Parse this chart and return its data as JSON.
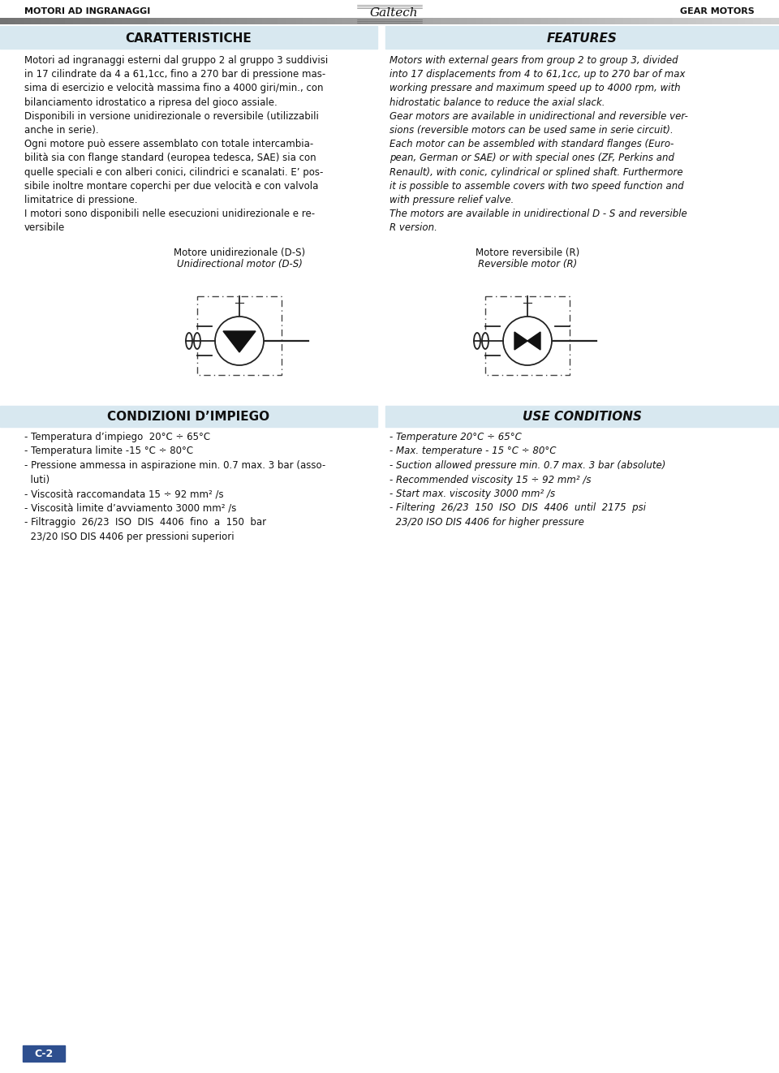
{
  "page_width": 9.6,
  "page_height": 13.22,
  "bg_color": "#ffffff",
  "header_text_left": "MOTORI AD INGRANAGGI",
  "header_text_right": "GEAR MOTORS",
  "section1_bg": "#d8e8f0",
  "section1_title_left": "CARATTERISTICHE",
  "section1_title_right": "FEATURES",
  "section1_body_left": "Motori ad ingranaggi esterni dal gruppo 2 al gruppo 3 suddivisi\nin 17 cilindrate da 4 a 61,1cc, fino a 270 bar di pressione mas-\nsima di esercizio e velocità massima fino a 4000 giri/min., con\nbilanciamento idrostatico a ripresa del gioco assiale.\nDisponibili in versione unidirezionale o reversibile (utilizzabili\nanche in serie).\nOgni motore può essere assemblato con totale intercambia-\nbilità sia con flange standard (europea tedesca, SAE) sia con\nquelle speciali e con alberi conici, cilindrici e scanalati. E’ pos-\nsibile inoltre montare coperchi per due velocità e con valvola\nlimitatrice di pressione.",
  "section1_body_right": "Motors with external gears from group 2 to group 3, divided\ninto 17 displacements from 4 to 61,1cc, up to 270 bar of max\nworking pressare and maximum speed up to 4000 rpm, with\nhidrostatic balance to reduce the axial slack.\nGear motors are available in unidirectional and reversible ver-\nsions (reversible motors can be used same in serie circuit).\nEach motor can be assembled with standard flanges (Euro-\npean, German or SAE) or with special ones (ZF, Perkins and\nRenault), with conic, cylindrical or splined shaft. Furthermore\nit is possible to assemble covers with two speed function and\nwith pressure relief valve.",
  "section1_body_left2": "I motori sono disponibili nelle esecuzioni unidirezionale e re-\nversibile",
  "section1_body_right2": "The motors are available in unidirectional D - S and reversible\nR version.",
  "motor_label_left": "Motore unidirezionale (D-S)",
  "motor_label_left_italic": "Unidirectional motor (D-S)",
  "motor_label_right": "Motore reversibile (R)",
  "motor_label_right_italic": "Reversible motor (R)",
  "section2_bg": "#d8e8f0",
  "section2_title_left": "CONDIZIONI D’IMPIEGO",
  "section2_title_right": "USE CONDITIONS",
  "section2_body_left": "- Temperatura d’impiego  20°C ÷ 65°C\n- Temperatura limite -15 °C ÷ 80°C\n- Pressione ammessa in aspirazione min. 0.7 max. 3 bar (asso-\n  luti)\n- Viscosità raccomandata 15 ÷ 92 mm² /s\n- Viscosità limite d’avviamento 3000 mm² /s\n- Filtraggio  26/23  ISO  DIS  4406  fino  a  150  bar\n  23/20 ISO DIS 4406 per pressioni superiori",
  "section2_body_right": "- Temperature 20°C ÷ 65°C\n- Max. temperature - 15 °C ÷ 80°C\n- Suction allowed pressure min. 0.7 max. 3 bar (absolute)\n- Recommended viscosity 15 ÷ 92 mm² /s\n- Start max. viscosity 3000 mm² /s\n- Filtering  26/23  150  ISO  DIS  4406  until  2175  psi\n  23/20 ISO DIS 4406 for higher pressure",
  "footer_label": "C-2",
  "footer_bg": "#2e4f8f"
}
